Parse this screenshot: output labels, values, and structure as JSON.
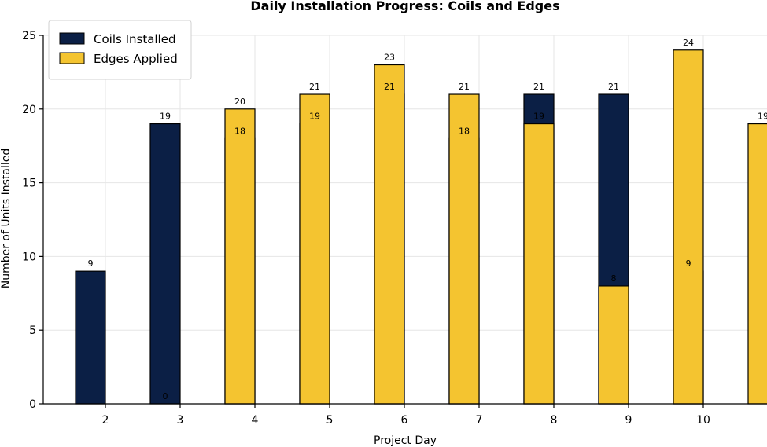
{
  "chart_data": {
    "type": "bar",
    "title": "Daily Installation Progress: Coils and Edges",
    "xlabel": "Project Day",
    "ylabel": "Number of Units Installed",
    "categories": [
      "2",
      "3",
      "4",
      "5",
      "6",
      "7",
      "8",
      "9",
      "10"
    ],
    "series": [
      {
        "name": "Coils Installed",
        "color": "#0b1f45",
        "values": [
          9,
          19,
          18,
          19,
          21,
          18,
          21,
          21,
          9
        ]
      },
      {
        "name": "Edges Applied",
        "color": "#f4c430",
        "values": [
          0,
          20,
          21,
          23,
          21,
          19,
          8,
          24,
          19
        ]
      }
    ],
    "ylim": [
      0,
      25
    ],
    "yticks": [
      "0",
      "5",
      "10",
      "15",
      "20",
      "25"
    ],
    "grid": true,
    "legend_position": "top-left"
  }
}
